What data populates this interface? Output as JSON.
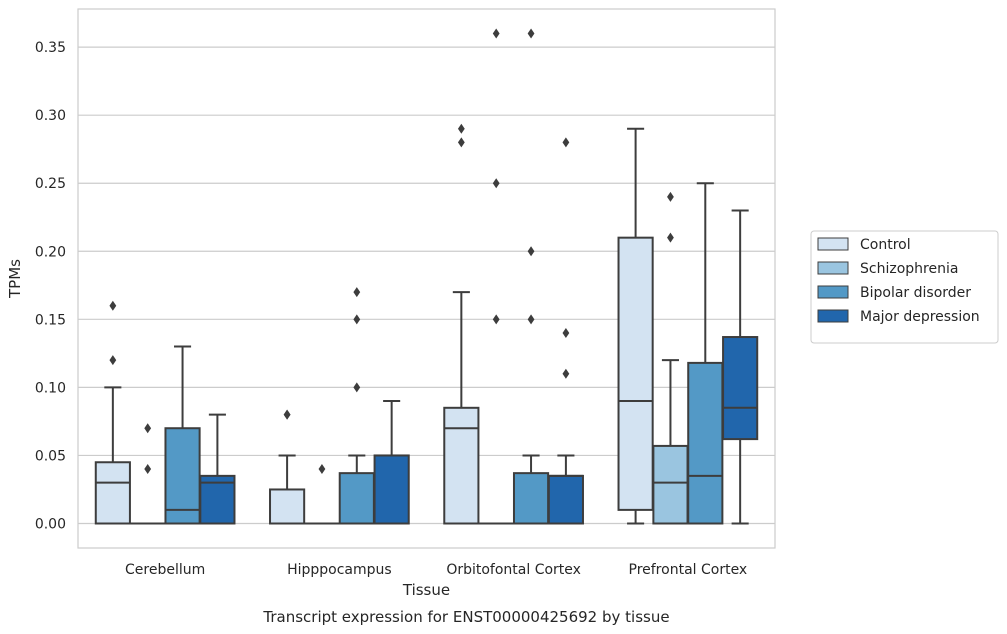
{
  "chart_data": {
    "type": "boxplot",
    "caption": "Transcript expression for ENST00000425692 by tissue",
    "xlabel": "Tissue",
    "ylabel": "TPMs",
    "ylim": [
      -0.018,
      0.378
    ],
    "yticks": [
      0.0,
      0.05,
      0.1,
      0.15,
      0.2,
      0.25,
      0.3,
      0.35
    ],
    "ytick_labels": [
      "0.00",
      "0.05",
      "0.10",
      "0.15",
      "0.20",
      "0.25",
      "0.30",
      "0.35"
    ],
    "grid": "horizontal",
    "legend_position": "right",
    "categories": [
      "Cerebellum",
      "Hipppocampus",
      "Orbitofontal Cortex",
      "Prefrontal Cortex"
    ],
    "series": [
      {
        "name": "Control",
        "color": "#d3e3f2",
        "boxes": [
          {
            "whislo": 0.0,
            "q1": 0.0,
            "med": 0.03,
            "q3": 0.045,
            "whishi": 0.1,
            "fliers": [
              0.12,
              0.16
            ]
          },
          {
            "whislo": 0.0,
            "q1": 0.0,
            "med": 0.0,
            "q3": 0.025,
            "whishi": 0.05,
            "fliers": [
              0.08,
              0.08
            ]
          },
          {
            "whislo": 0.0,
            "q1": 0.0,
            "med": 0.07,
            "q3": 0.085,
            "whishi": 0.17,
            "fliers": [
              0.28,
              0.29
            ]
          },
          {
            "whislo": 0.0,
            "q1": 0.01,
            "med": 0.09,
            "q3": 0.21,
            "whishi": 0.29,
            "fliers": []
          }
        ]
      },
      {
        "name": "Schizophrenia",
        "color": "#9ac5e0",
        "boxes": [
          {
            "whislo": 0.0,
            "q1": 0.0,
            "med": 0.0,
            "q3": 0.0,
            "whishi": 0.0,
            "fliers": [
              0.04,
              0.07
            ]
          },
          {
            "whislo": 0.0,
            "q1": 0.0,
            "med": 0.0,
            "q3": 0.0,
            "whishi": 0.0,
            "fliers": [
              0.04
            ]
          },
          {
            "whislo": 0.0,
            "q1": 0.0,
            "med": 0.0,
            "q3": 0.0,
            "whishi": 0.0,
            "fliers": [
              0.15,
              0.25,
              0.36
            ]
          },
          {
            "whislo": 0.0,
            "q1": 0.0,
            "med": 0.03,
            "q3": 0.057,
            "whishi": 0.12,
            "fliers": [
              0.21,
              0.24
            ]
          }
        ]
      },
      {
        "name": "Bipolar disorder",
        "color": "#5399c6",
        "boxes": [
          {
            "whislo": 0.0,
            "q1": 0.0,
            "med": 0.01,
            "q3": 0.07,
            "whishi": 0.13,
            "fliers": []
          },
          {
            "whislo": 0.0,
            "q1": 0.0,
            "med": 0.0,
            "q3": 0.037,
            "whishi": 0.05,
            "fliers": [
              0.1,
              0.15,
              0.17
            ]
          },
          {
            "whislo": 0.0,
            "q1": 0.0,
            "med": 0.0,
            "q3": 0.037,
            "whishi": 0.05,
            "fliers": [
              0.15,
              0.2,
              0.36
            ]
          },
          {
            "whislo": 0.0,
            "q1": 0.0,
            "med": 0.035,
            "q3": 0.118,
            "whishi": 0.25,
            "fliers": []
          }
        ]
      },
      {
        "name": "Major depression",
        "color": "#2166ac",
        "boxes": [
          {
            "whislo": 0.0,
            "q1": 0.0,
            "med": 0.03,
            "q3": 0.035,
            "whishi": 0.08,
            "fliers": []
          },
          {
            "whislo": 0.0,
            "q1": 0.0,
            "med": 0.05,
            "q3": 0.05,
            "whishi": 0.09,
            "fliers": []
          },
          {
            "whislo": 0.0,
            "q1": 0.0,
            "med": 0.035,
            "q3": 0.035,
            "whishi": 0.05,
            "fliers": [
              0.11,
              0.14,
              0.28
            ]
          },
          {
            "whislo": 0.0,
            "q1": 0.062,
            "med": 0.085,
            "q3": 0.137,
            "whishi": 0.23,
            "fliers": []
          }
        ]
      }
    ]
  }
}
